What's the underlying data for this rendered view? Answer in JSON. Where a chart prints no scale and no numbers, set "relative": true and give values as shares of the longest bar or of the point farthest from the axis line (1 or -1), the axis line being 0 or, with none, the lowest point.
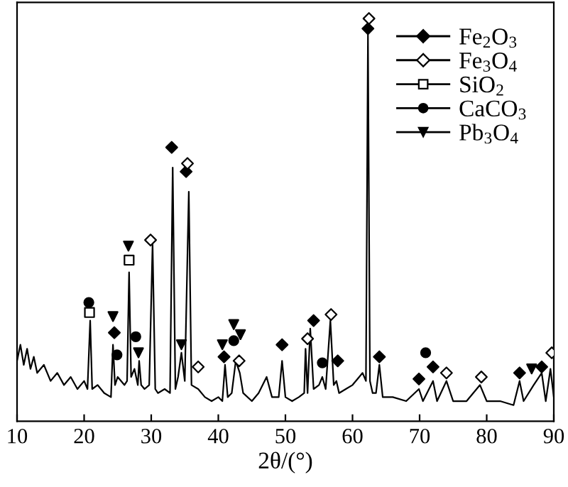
{
  "chart_data": {
    "type": "line",
    "relative": true,
    "xlabel": "2θ/(°)",
    "xlim": [
      10,
      90
    ],
    "xticks": [
      10,
      20,
      30,
      40,
      50,
      60,
      70,
      80,
      90
    ],
    "tick_labels": "x",
    "grid": false,
    "legend": "top right",
    "series": [
      {
        "color": "#000000",
        "marker": "none",
        "line_style": "solid",
        "x": [
          10,
          10.5,
          11,
          11.5,
          12,
          12.5,
          13,
          14,
          15,
          16,
          17,
          18,
          19,
          20,
          20.5,
          20.9,
          21.2,
          22,
          23,
          24,
          24.3,
          24.6,
          25,
          26,
          26.4,
          26.7,
          27,
          27.5,
          28,
          28.2,
          28.5,
          29,
          29.7,
          30.2,
          30.6,
          31,
          32,
          32.8,
          33.2,
          33.6,
          34,
          34.5,
          35,
          35.6,
          36,
          37,
          38,
          39,
          40,
          40.6,
          41,
          41.4,
          42,
          42.6,
          43.2,
          43.7,
          45,
          46,
          47.2,
          48,
          49,
          49.5,
          50,
          51,
          52,
          52.8,
          53.0,
          53.3,
          53.7,
          54.2,
          55,
          55.5,
          56,
          56.7,
          57.2,
          57.6,
          58,
          59,
          60,
          61,
          61.5,
          62,
          62.3,
          62.6,
          63,
          63.5,
          64,
          64.5,
          66,
          68,
          69.9,
          70.5,
          72,
          72.6,
          74,
          75,
          77,
          79,
          80,
          82,
          84,
          84.9,
          85.5,
          87,
          88.2,
          88.8,
          89.5,
          90
        ],
        "values": [
          0.15,
          0.19,
          0.14,
          0.18,
          0.13,
          0.16,
          0.12,
          0.14,
          0.1,
          0.12,
          0.09,
          0.11,
          0.08,
          0.1,
          0.08,
          0.25,
          0.08,
          0.09,
          0.07,
          0.06,
          0.19,
          0.09,
          0.11,
          0.09,
          0.1,
          0.37,
          0.11,
          0.13,
          0.09,
          0.15,
          0.09,
          0.08,
          0.09,
          0.44,
          0.08,
          0.07,
          0.08,
          0.07,
          0.63,
          0.08,
          0.11,
          0.17,
          0.1,
          0.57,
          0.09,
          0.08,
          0.06,
          0.05,
          0.06,
          0.05,
          0.14,
          0.06,
          0.07,
          0.15,
          0.12,
          0.07,
          0.05,
          0.07,
          0.11,
          0.06,
          0.06,
          0.15,
          0.06,
          0.05,
          0.06,
          0.07,
          0.18,
          0.07,
          0.23,
          0.08,
          0.09,
          0.11,
          0.08,
          0.25,
          0.09,
          0.1,
          0.07,
          0.08,
          0.09,
          0.11,
          0.12,
          0.1,
          0.96,
          0.1,
          0.07,
          0.07,
          0.14,
          0.06,
          0.06,
          0.05,
          0.08,
          0.05,
          0.1,
          0.05,
          0.1,
          0.05,
          0.05,
          0.09,
          0.05,
          0.05,
          0.04,
          0.1,
          0.05,
          0.09,
          0.12,
          0.05,
          0.13,
          0.06
        ]
      },
      {
        "type": "scatter",
        "name": "Fe$_{2}$O$_{3}$",
        "color": "#000000",
        "marker": "diamond",
        "x": [
          33.05,
          35.2,
          24.5,
          40.85,
          49.5,
          62.3,
          54.2,
          57.8,
          64.0,
          69.9,
          72.0,
          84.9,
          88.2
        ],
        "values": [
          0.68,
          0.62,
          0.22,
          0.16,
          0.19,
          0.975,
          0.25,
          0.15,
          0.16,
          0.105,
          0.135,
          0.12,
          0.135
        ]
      },
      {
        "type": "scatter",
        "name": "Fe$_{3}$O$_{4}$",
        "color": "#000000",
        "marker": "diamond_open",
        "x": [
          35.4,
          29.9,
          37.0,
          43.1,
          62.45,
          53.3,
          56.8,
          74.0,
          79.2,
          89.7
        ],
        "values": [
          0.64,
          0.45,
          0.135,
          0.15,
          1.0,
          0.205,
          0.265,
          0.12,
          0.11,
          0.17
        ]
      },
      {
        "type": "scatter",
        "name": "SiO$_{2}$",
        "color": "#000000",
        "marker": "square_open",
        "x": [
          20.8,
          26.7
        ],
        "values": [
          0.27,
          0.4
        ]
      },
      {
        "type": "scatter",
        "name": "CaCO$_{3}$",
        "color": "#000000",
        "marker": "circle",
        "x": [
          20.7,
          24.9,
          27.7,
          42.3,
          55.5,
          70.9
        ],
        "values": [
          0.295,
          0.165,
          0.21,
          0.2,
          0.145,
          0.17
        ]
      },
      {
        "type": "scatter",
        "name": "Pb$_{3}$O$_{4}$",
        "color": "#000000",
        "marker": "triangle",
        "x": [
          26.6,
          24.3,
          28.1,
          34.5,
          40.6,
          42.3,
          43.3,
          86.7
        ],
        "values": [
          0.435,
          0.26,
          0.17,
          0.19,
          0.19,
          0.24,
          0.215,
          0.13
        ]
      }
    ]
  }
}
